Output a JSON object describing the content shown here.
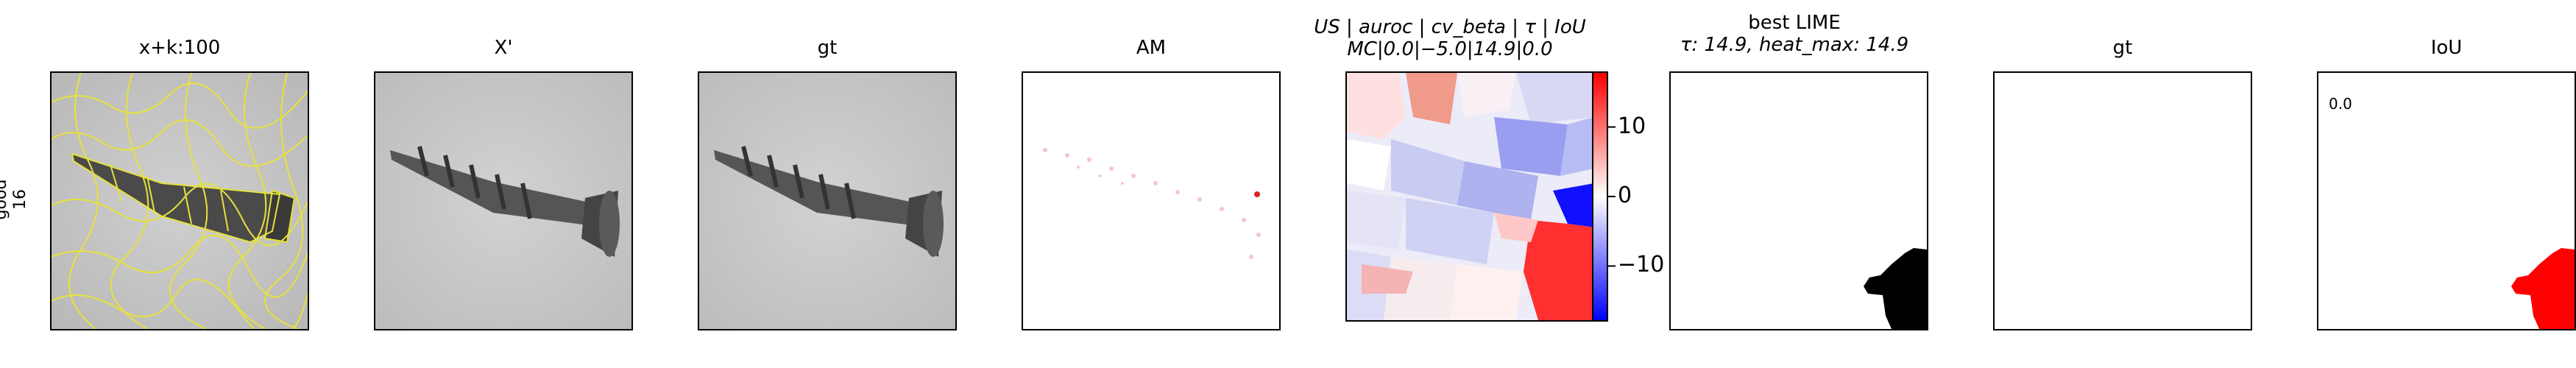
{
  "row_label": {
    "line1": "good",
    "line2": "16"
  },
  "panels": [
    {
      "title": "x+k:100"
    },
    {
      "title": "X'"
    },
    {
      "title": "gt"
    },
    {
      "title": "AM"
    },
    {
      "title_line1": "US | auroc | cv_beta | τ | IoU",
      "title_line2": "MC|0.0|−5.0|14.9|0.0"
    },
    {
      "title_line1": "best LIME",
      "title_line2": "τ: 14.9, heat_max: 14.9"
    },
    {
      "title": "gt"
    },
    {
      "title": "IoU",
      "annotation": "0.0"
    }
  ],
  "chart_data": {
    "type": "heatmap",
    "colorbar": {
      "ticks": [
        10,
        0,
        -10
      ],
      "tick_labels": [
        "10",
        "0",
        "−10"
      ],
      "range": [
        -18,
        18
      ],
      "colormap": "bwr"
    },
    "colors": {
      "segment_outline": "#e6e23a",
      "negative": "#0000ff",
      "positive": "#ff0000",
      "mask": "#000000",
      "iou_mask": "#ff0000"
    }
  }
}
